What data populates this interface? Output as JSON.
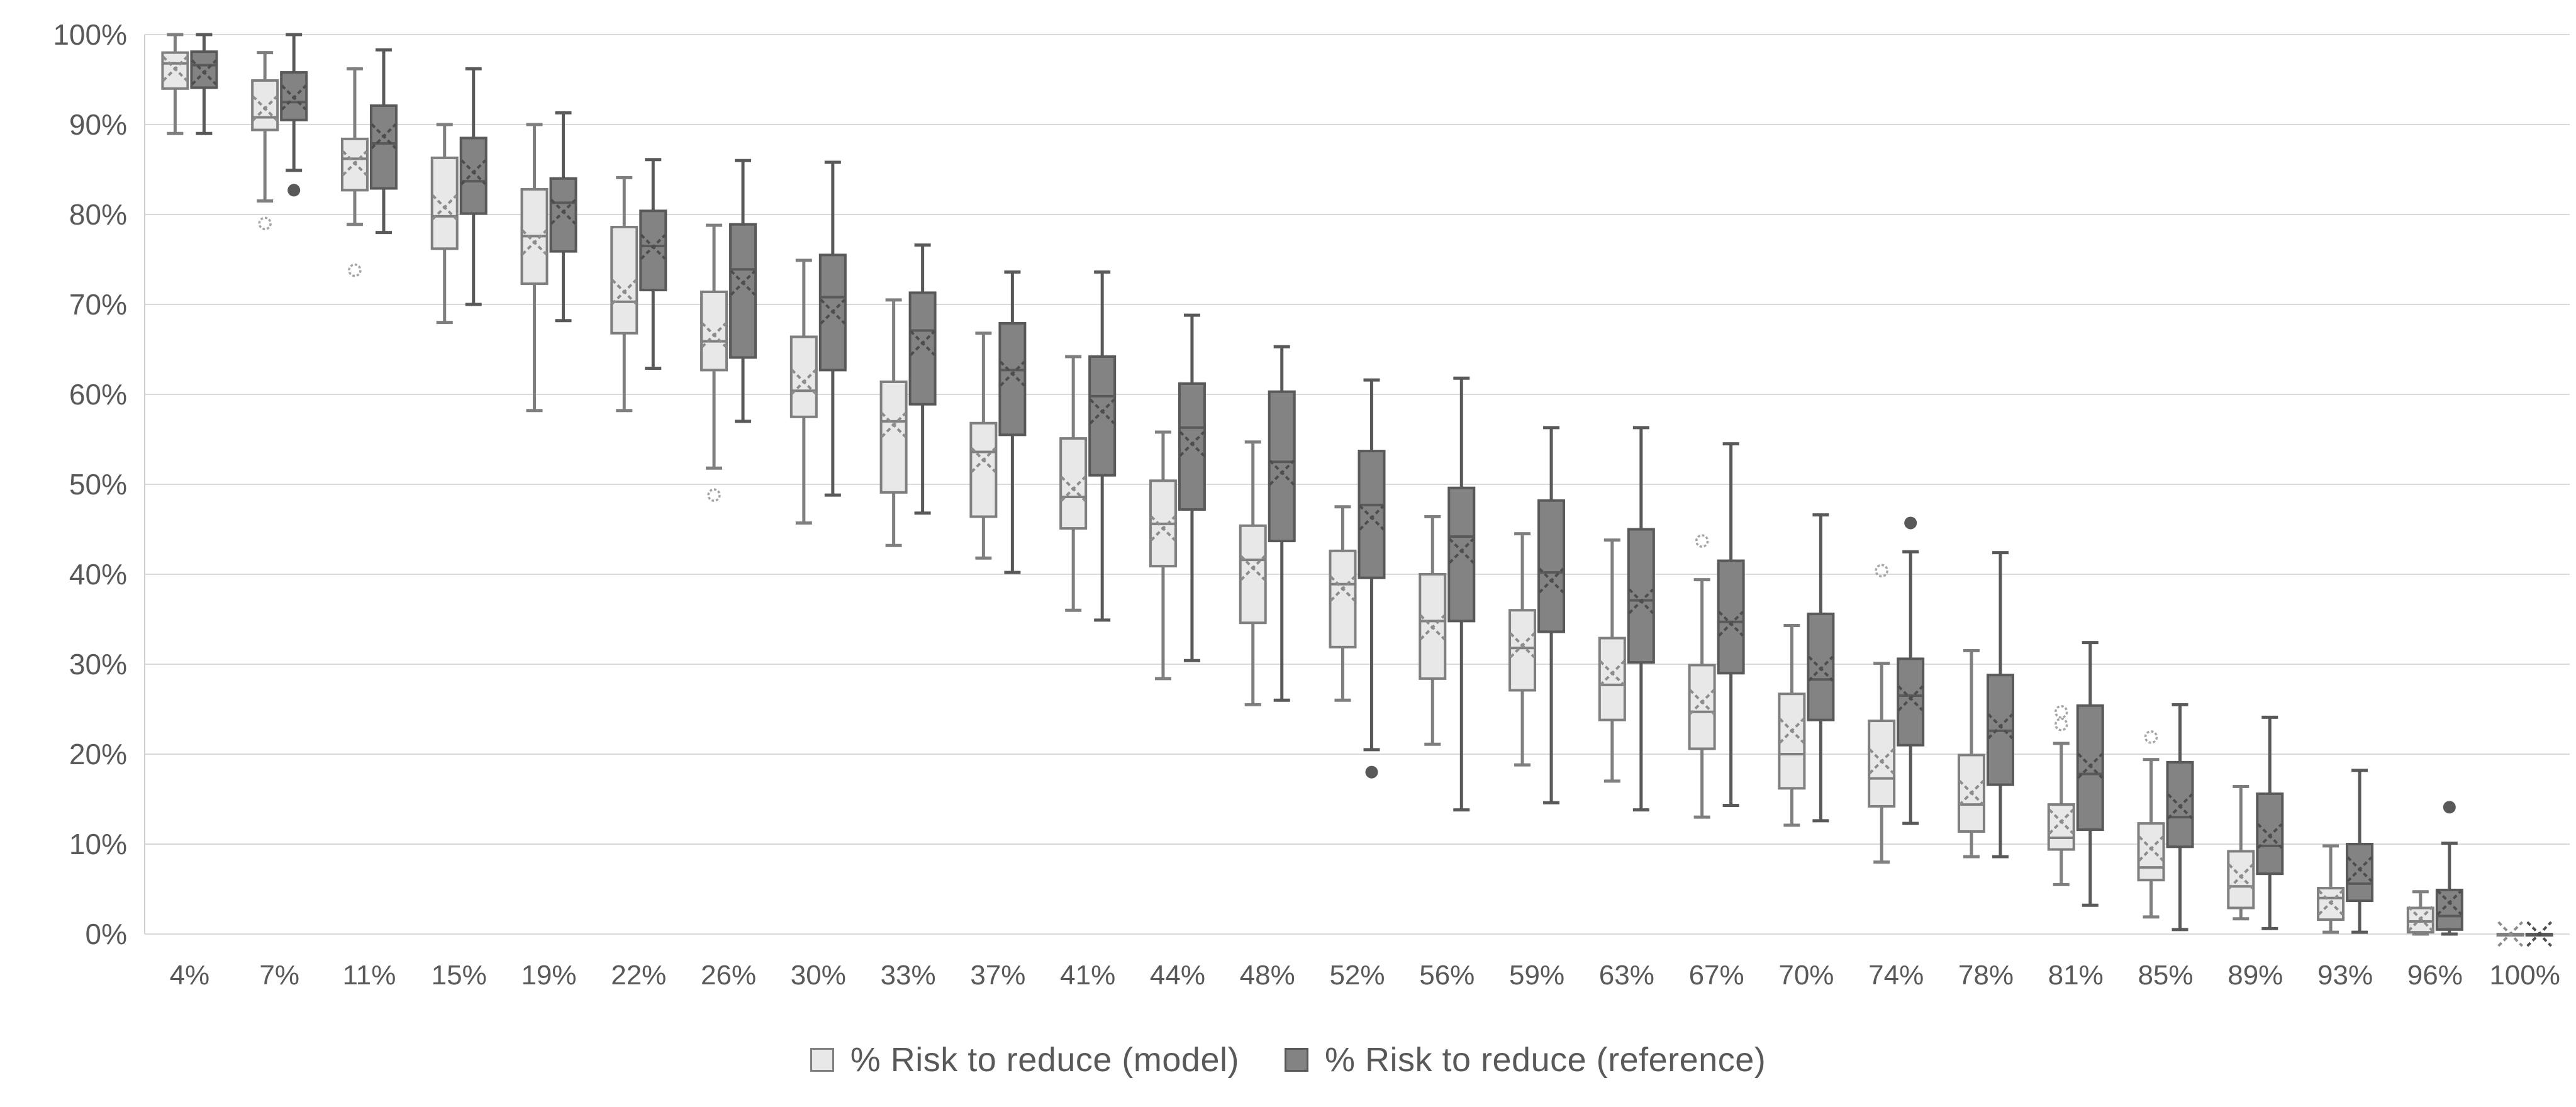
{
  "chart_data": {
    "type": "boxplot",
    "title": "",
    "xlabel": "",
    "ylabel": "",
    "ylim": [
      0,
      100
    ],
    "grid": true,
    "legend_position": "bottom",
    "yticks": [
      "0%",
      "10%",
      "20%",
      "30%",
      "40%",
      "50%",
      "60%",
      "70%",
      "80%",
      "90%",
      "100%"
    ],
    "categories": [
      "4%",
      "7%",
      "11%",
      "15%",
      "19%",
      "22%",
      "26%",
      "30%",
      "33%",
      "37%",
      "41%",
      "44%",
      "48%",
      "52%",
      "56%",
      "59%",
      "63%",
      "67%",
      "70%",
      "74%",
      "78%",
      "81%",
      "85%",
      "89%",
      "93%",
      "96%",
      "100%"
    ],
    "colors": {
      "gridline": "#d9d9d9",
      "axis_line": "#d0d0d0",
      "axis_text": "#595959",
      "background": "#ffffff"
    },
    "series": [
      {
        "name": "% Risk to reduce (model)",
        "fill": "#e8e8e8",
        "stroke": "#7f7f7f",
        "mean_color": "#8c8c8c",
        "outlier_style": "open",
        "boxes": [
          {
            "low": 89.0,
            "q1": 94.0,
            "median": 96.8,
            "q3": 98.0,
            "high": 100.0,
            "mean": 96.2,
            "outliers": []
          },
          {
            "low": 81.5,
            "q1": 89.4,
            "median": 90.8,
            "q3": 94.9,
            "high": 98.0,
            "mean": 91.8,
            "outliers": [
              79.0
            ]
          },
          {
            "low": 78.9,
            "q1": 82.7,
            "median": 86.2,
            "q3": 88.4,
            "high": 96.2,
            "mean": 85.7,
            "outliers": [
              73.8
            ]
          },
          {
            "low": 68.0,
            "q1": 76.2,
            "median": 79.8,
            "q3": 86.3,
            "high": 90.0,
            "mean": 80.8,
            "outliers": []
          },
          {
            "low": 58.2,
            "q1": 72.3,
            "median": 77.6,
            "q3": 82.8,
            "high": 90.0,
            "mean": 76.9,
            "outliers": []
          },
          {
            "low": 58.2,
            "q1": 66.8,
            "median": 70.3,
            "q3": 78.6,
            "high": 84.1,
            "mean": 71.4,
            "outliers": []
          },
          {
            "low": 51.8,
            "q1": 62.7,
            "median": 65.9,
            "q3": 71.4,
            "high": 78.8,
            "mean": 66.6,
            "outliers": [
              48.8
            ]
          },
          {
            "low": 45.7,
            "q1": 57.5,
            "median": 60.4,
            "q3": 66.4,
            "high": 74.9,
            "mean": 61.4,
            "outliers": []
          },
          {
            "low": 43.2,
            "q1": 49.1,
            "median": 57.0,
            "q3": 61.4,
            "high": 70.5,
            "mean": 56.6,
            "outliers": []
          },
          {
            "low": 41.8,
            "q1": 46.4,
            "median": 53.6,
            "q3": 56.8,
            "high": 66.8,
            "mean": 52.7,
            "outliers": []
          },
          {
            "low": 36.0,
            "q1": 45.1,
            "median": 48.6,
            "q3": 55.1,
            "high": 64.2,
            "mean": 49.5,
            "outliers": []
          },
          {
            "low": 28.4,
            "q1": 40.9,
            "median": 45.6,
            "q3": 50.4,
            "high": 55.8,
            "mean": 45.1,
            "outliers": []
          },
          {
            "low": 25.5,
            "q1": 34.6,
            "median": 41.6,
            "q3": 45.4,
            "high": 54.7,
            "mean": 40.7,
            "outliers": []
          },
          {
            "low": 26.0,
            "q1": 31.9,
            "median": 38.9,
            "q3": 42.6,
            "high": 47.5,
            "mean": 38.4,
            "outliers": []
          },
          {
            "low": 21.1,
            "q1": 28.4,
            "median": 34.8,
            "q3": 40.0,
            "high": 46.4,
            "mean": 34.1,
            "outliers": []
          },
          {
            "low": 18.8,
            "q1": 27.1,
            "median": 31.8,
            "q3": 36.0,
            "high": 44.5,
            "mean": 32.1,
            "outliers": []
          },
          {
            "low": 17.0,
            "q1": 23.8,
            "median": 27.7,
            "q3": 32.9,
            "high": 43.8,
            "mean": 29.0,
            "outliers": []
          },
          {
            "low": 13.0,
            "q1": 20.6,
            "median": 24.7,
            "q3": 29.9,
            "high": 39.4,
            "mean": 25.8,
            "outliers": [
              43.7
            ]
          },
          {
            "low": 12.1,
            "q1": 16.2,
            "median": 20.0,
            "q3": 26.7,
            "high": 34.3,
            "mean": 22.6,
            "outliers": []
          },
          {
            "low": 8.0,
            "q1": 14.2,
            "median": 17.3,
            "q3": 23.7,
            "high": 30.1,
            "mean": 19.2,
            "outliers": [
              40.4
            ]
          },
          {
            "low": 8.6,
            "q1": 11.4,
            "median": 14.4,
            "q3": 19.9,
            "high": 31.5,
            "mean": 15.7,
            "outliers": []
          },
          {
            "low": 5.5,
            "q1": 9.4,
            "median": 10.7,
            "q3": 14.4,
            "high": 21.2,
            "mean": 12.5,
            "outliers": [
              23.3,
              24.7
            ]
          },
          {
            "low": 1.9,
            "q1": 6.0,
            "median": 7.4,
            "q3": 12.3,
            "high": 19.4,
            "mean": 9.5,
            "outliers": [
              21.9
            ]
          },
          {
            "low": 1.7,
            "q1": 2.9,
            "median": 5.3,
            "q3": 9.2,
            "high": 16.4,
            "mean": 6.4,
            "outliers": []
          },
          {
            "low": 0.2,
            "q1": 1.6,
            "median": 4.0,
            "q3": 5.1,
            "high": 9.8,
            "mean": 3.5,
            "outliers": []
          },
          {
            "low": 0.0,
            "q1": 0.2,
            "median": 1.4,
            "q3": 2.9,
            "high": 4.7,
            "mean": 1.7,
            "outliers": []
          },
          {
            "low": 0.0,
            "q1": 0.0,
            "median": 0.0,
            "q3": 0.0,
            "high": 0.0,
            "mean": 0.0,
            "outliers": []
          }
        ]
      },
      {
        "name": "% Risk to reduce (reference)",
        "fill": "#838383",
        "stroke": "#595959",
        "mean_color": "#4d4d4d",
        "outlier_style": "filled",
        "boxes": [
          {
            "low": 89.0,
            "q1": 94.1,
            "median": 96.6,
            "q3": 98.1,
            "high": 100.0,
            "mean": 95.8,
            "outliers": []
          },
          {
            "low": 84.9,
            "q1": 90.5,
            "median": 92.5,
            "q3": 95.8,
            "high": 100.0,
            "mean": 93.0,
            "outliers": [
              82.7
            ]
          },
          {
            "low": 78.0,
            "q1": 82.9,
            "median": 87.9,
            "q3": 92.1,
            "high": 98.3,
            "mean": 88.7,
            "outliers": []
          },
          {
            "low": 70.0,
            "q1": 80.1,
            "median": 83.7,
            "q3": 88.5,
            "high": 96.2,
            "mean": 84.7,
            "outliers": []
          },
          {
            "low": 68.2,
            "q1": 75.9,
            "median": 81.3,
            "q3": 84.0,
            "high": 91.3,
            "mean": 80.3,
            "outliers": []
          },
          {
            "low": 62.9,
            "q1": 71.6,
            "median": 76.5,
            "q3": 80.4,
            "high": 86.1,
            "mean": 76.4,
            "outliers": []
          },
          {
            "low": 57.0,
            "q1": 64.1,
            "median": 73.9,
            "q3": 78.9,
            "high": 86.0,
            "mean": 72.4,
            "outliers": []
          },
          {
            "low": 48.8,
            "q1": 62.7,
            "median": 70.8,
            "q3": 75.5,
            "high": 85.8,
            "mean": 69.2,
            "outliers": []
          },
          {
            "low": 46.8,
            "q1": 58.9,
            "median": 67.1,
            "q3": 71.3,
            "high": 76.6,
            "mean": 65.7,
            "outliers": []
          },
          {
            "low": 40.2,
            "q1": 55.5,
            "median": 62.7,
            "q3": 67.9,
            "high": 73.6,
            "mean": 62.3,
            "outliers": []
          },
          {
            "low": 34.9,
            "q1": 51.0,
            "median": 59.8,
            "q3": 64.2,
            "high": 73.6,
            "mean": 58.1,
            "outliers": []
          },
          {
            "low": 30.4,
            "q1": 47.2,
            "median": 56.3,
            "q3": 61.2,
            "high": 68.8,
            "mean": 54.5,
            "outliers": []
          },
          {
            "low": 26.0,
            "q1": 43.7,
            "median": 52.5,
            "q3": 60.3,
            "high": 65.3,
            "mean": 51.3,
            "outliers": []
          },
          {
            "low": 20.5,
            "q1": 39.6,
            "median": 47.7,
            "q3": 53.7,
            "high": 61.6,
            "mean": 46.3,
            "outliers": [
              18.0
            ]
          },
          {
            "low": 13.8,
            "q1": 34.8,
            "median": 44.2,
            "q3": 49.6,
            "high": 61.8,
            "mean": 42.6,
            "outliers": []
          },
          {
            "low": 14.6,
            "q1": 33.6,
            "median": 40.2,
            "q3": 48.2,
            "high": 56.3,
            "mean": 39.3,
            "outliers": []
          },
          {
            "low": 13.8,
            "q1": 30.2,
            "median": 37.1,
            "q3": 45.0,
            "high": 56.3,
            "mean": 37.0,
            "outliers": []
          },
          {
            "low": 14.3,
            "q1": 29.0,
            "median": 34.7,
            "q3": 41.5,
            "high": 54.5,
            "mean": 34.5,
            "outliers": []
          },
          {
            "low": 12.6,
            "q1": 23.8,
            "median": 28.3,
            "q3": 35.6,
            "high": 46.6,
            "mean": 29.5,
            "outliers": []
          },
          {
            "low": 12.3,
            "q1": 21.0,
            "median": 26.5,
            "q3": 30.6,
            "high": 42.5,
            "mean": 26.2,
            "outliers": [
              45.7
            ]
          },
          {
            "low": 8.6,
            "q1": 16.6,
            "median": 22.6,
            "q3": 28.8,
            "high": 42.4,
            "mean": 23.1,
            "outliers": []
          },
          {
            "low": 3.2,
            "q1": 11.6,
            "median": 17.8,
            "q3": 25.4,
            "high": 32.4,
            "mean": 18.7,
            "outliers": []
          },
          {
            "low": 0.5,
            "q1": 9.7,
            "median": 13.0,
            "q3": 19.1,
            "high": 25.5,
            "mean": 14.2,
            "outliers": []
          },
          {
            "low": 0.6,
            "q1": 6.7,
            "median": 9.8,
            "q3": 15.6,
            "high": 24.1,
            "mean": 10.9,
            "outliers": []
          },
          {
            "low": 0.2,
            "q1": 3.7,
            "median": 5.6,
            "q3": 10.0,
            "high": 18.2,
            "mean": 7.2,
            "outliers": []
          },
          {
            "low": 0.0,
            "q1": 0.5,
            "median": 2.0,
            "q3": 4.9,
            "high": 10.1,
            "mean": 3.5,
            "outliers": [
              14.1
            ]
          },
          {
            "low": 0.0,
            "q1": 0.0,
            "median": 0.0,
            "q3": 0.0,
            "high": 0.0,
            "mean": 0.0,
            "outliers": []
          }
        ]
      }
    ]
  }
}
